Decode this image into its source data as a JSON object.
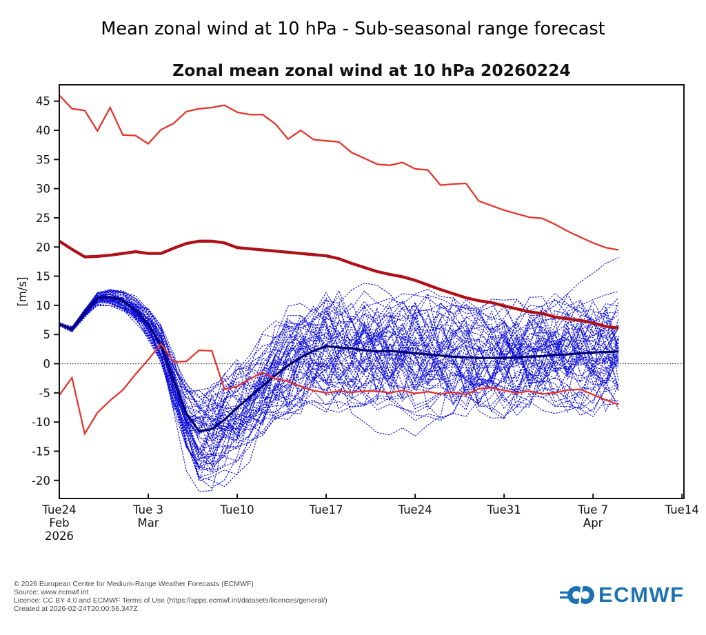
{
  "title": "Mean zonal wind at 10 hPa - Sub-seasonal range forecast",
  "chart": {
    "subtitle": "Zonal mean zonal wind at 10 hPa 20260224",
    "axes": {
      "ylabel": "[m/s]",
      "ylim": [
        -23.1,
        47.8
      ],
      "xlim_days": [
        0,
        49.15
      ],
      "y_ticks": [
        -20,
        -15,
        -10,
        -5,
        0,
        5,
        10,
        15,
        20,
        25,
        30,
        35,
        40,
        45
      ],
      "x_ticks": [
        {
          "day": 0,
          "l1": "Tue24",
          "l2": "Feb",
          "l3": "2026"
        },
        {
          "day": 7,
          "l1": "Tue 3",
          "l2": "Mar",
          "l3": ""
        },
        {
          "day": 14,
          "l1": "Tue10",
          "l2": "",
          "l3": ""
        },
        {
          "day": 21,
          "l1": "Tue17",
          "l2": "",
          "l3": ""
        },
        {
          "day": 28,
          "l1": "Tue24",
          "l2": "",
          "l3": ""
        },
        {
          "day": 35,
          "l1": "Tue31",
          "l2": "",
          "l3": ""
        },
        {
          "day": 42,
          "l1": "Tue 7",
          "l2": "Apr",
          "l3": ""
        },
        {
          "day": 49,
          "l1": "Tue14",
          "l2": "",
          "l3": ""
        }
      ],
      "zero_line": 0
    }
  },
  "chart_data": {
    "type": "line",
    "x_start_date": "2026-02-24",
    "x_step": "1 day",
    "n_points": 45,
    "series": [
      {
        "name": "climate-max",
        "color": "#e5342b",
        "width": 2.3,
        "style": "solid",
        "values": [
          46.0,
          43.7,
          43.4,
          39.9,
          43.9,
          39.2,
          39.1,
          37.7,
          40.1,
          41.2,
          43.2,
          43.7,
          43.9,
          44.3,
          43.1,
          42.7,
          42.7,
          41.1,
          38.5,
          40.0,
          38.4,
          38.2,
          38.0,
          36.2,
          35.2,
          34.2,
          34.0,
          34.5,
          33.4,
          33.2,
          30.6,
          30.8,
          30.9,
          27.9,
          27.1,
          26.3,
          25.7,
          25.1,
          24.9,
          23.9,
          22.7,
          21.7,
          20.7,
          19.9,
          19.5
        ]
      },
      {
        "name": "climate-mean",
        "color": "#ae1117",
        "width": 4.3,
        "style": "solid",
        "values": [
          21.0,
          19.6,
          18.3,
          18.4,
          18.6,
          18.9,
          19.2,
          18.9,
          18.9,
          19.8,
          20.6,
          21.0,
          21.0,
          20.7,
          19.9,
          19.7,
          19.5,
          19.3,
          19.1,
          18.9,
          18.7,
          18.5,
          18.0,
          17.2,
          16.5,
          15.8,
          15.3,
          14.9,
          14.3,
          13.5,
          12.7,
          12.0,
          11.3,
          10.8,
          10.5,
          9.9,
          9.4,
          8.9,
          8.6,
          8.0,
          7.7,
          7.4,
          7.0,
          6.4,
          6.1
        ]
      },
      {
        "name": "climate-min",
        "color": "#e5342b",
        "width": 2.3,
        "style": "solid",
        "values": [
          -5.4,
          -2.4,
          -12.0,
          -8.4,
          -6.3,
          -4.5,
          -1.8,
          0.7,
          3.4,
          0.3,
          0.4,
          2.3,
          2.2,
          -4.4,
          -3.9,
          -2.6,
          -1.5,
          -2.6,
          -3.0,
          -3.9,
          -4.6,
          -5.0,
          -4.7,
          -4.9,
          -4.7,
          -4.7,
          -5.0,
          -4.6,
          -5.1,
          -4.8,
          -5.2,
          -4.9,
          -5.3,
          -4.3,
          -4.1,
          -4.6,
          -5.0,
          -4.7,
          -5.2,
          -5.0,
          -4.5,
          -4.4,
          -5.3,
          -6.2,
          -7.0
        ]
      },
      {
        "name": "ensemble-mean",
        "color": "#000070",
        "width": 3.2,
        "style": "solid",
        "values": [
          6.8,
          5.9,
          8.7,
          11.2,
          11.4,
          10.8,
          9.2,
          6.8,
          3.2,
          -3.0,
          -8.5,
          -11.6,
          -11.2,
          -9.6,
          -7.5,
          -5.7,
          -3.8,
          -2.0,
          -0.3,
          1.1,
          2.2,
          3.0,
          2.8,
          2.6,
          2.3,
          2.1,
          2.2,
          2.0,
          1.8,
          1.6,
          1.4,
          1.2,
          1.1,
          1.0,
          1.0,
          1.0,
          1.1,
          1.2,
          1.3,
          1.5,
          1.6,
          1.8,
          1.9,
          2.0,
          2.1
        ]
      }
    ],
    "ensemble_members": {
      "count": 56,
      "seed": 7,
      "color": "#0c0cdc",
      "width": 1.1,
      "dash": "2.5 1.6",
      "half_spread": [
        0.22,
        0.32,
        0.5,
        0.75,
        0.95,
        1.15,
        1.45,
        1.85,
        2.4,
        2.9,
        3.6,
        5.0,
        5.6,
        5.6,
        5.3,
        5.3,
        5.5,
        5.7,
        5.9,
        6.2,
        6.5,
        6.7,
        6.7,
        6.7,
        6.7,
        6.8,
        6.8,
        6.8,
        6.8,
        6.7,
        6.6,
        6.5,
        6.5,
        6.4,
        6.4,
        6.3,
        6.3,
        6.4,
        6.4,
        6.5,
        6.5,
        6.6,
        6.7,
        6.8,
        6.9
      ],
      "envelope_min": -21.9,
      "crash_shape_start_day": 8,
      "crash_shape": [
        0.1,
        0.4,
        0.8,
        1.1,
        1.0,
        0.7,
        0.4,
        0.2
      ],
      "crash_amp_scale": 2.2,
      "outlier_top_track": [
        5.5,
        7.0,
        8.5,
        10.0,
        12.0,
        14.0,
        15.5,
        17.2,
        18.2
      ],
      "outlier_top_start_day": 36,
      "outlier_second_track": [
        9.0,
        10.0,
        11.0,
        11.8,
        12.4
      ],
      "outlier_second_start_day": 40,
      "outlier_low_track": [
        -8.5,
        -10.0,
        -11.8,
        -12.2,
        -11.0,
        -12.4,
        -10.5,
        -9.0
      ],
      "outlier_low_start_day": 23
    }
  },
  "footer": {
    "lines": [
      "© 2026 European Centre for Medium-Range Weather Forecasts (ECMWF)",
      "Source: www.ecmwf.int",
      "Licence: CC BY 4.0 and ECMWF Terms of Use (https://apps.ecmwf.int/datasets/licences/general/)",
      "Created at 2026-02-24T20:00:56.347Z"
    ]
  },
  "logo": {
    "text": "ECMWF",
    "color": "#1c72b2"
  }
}
